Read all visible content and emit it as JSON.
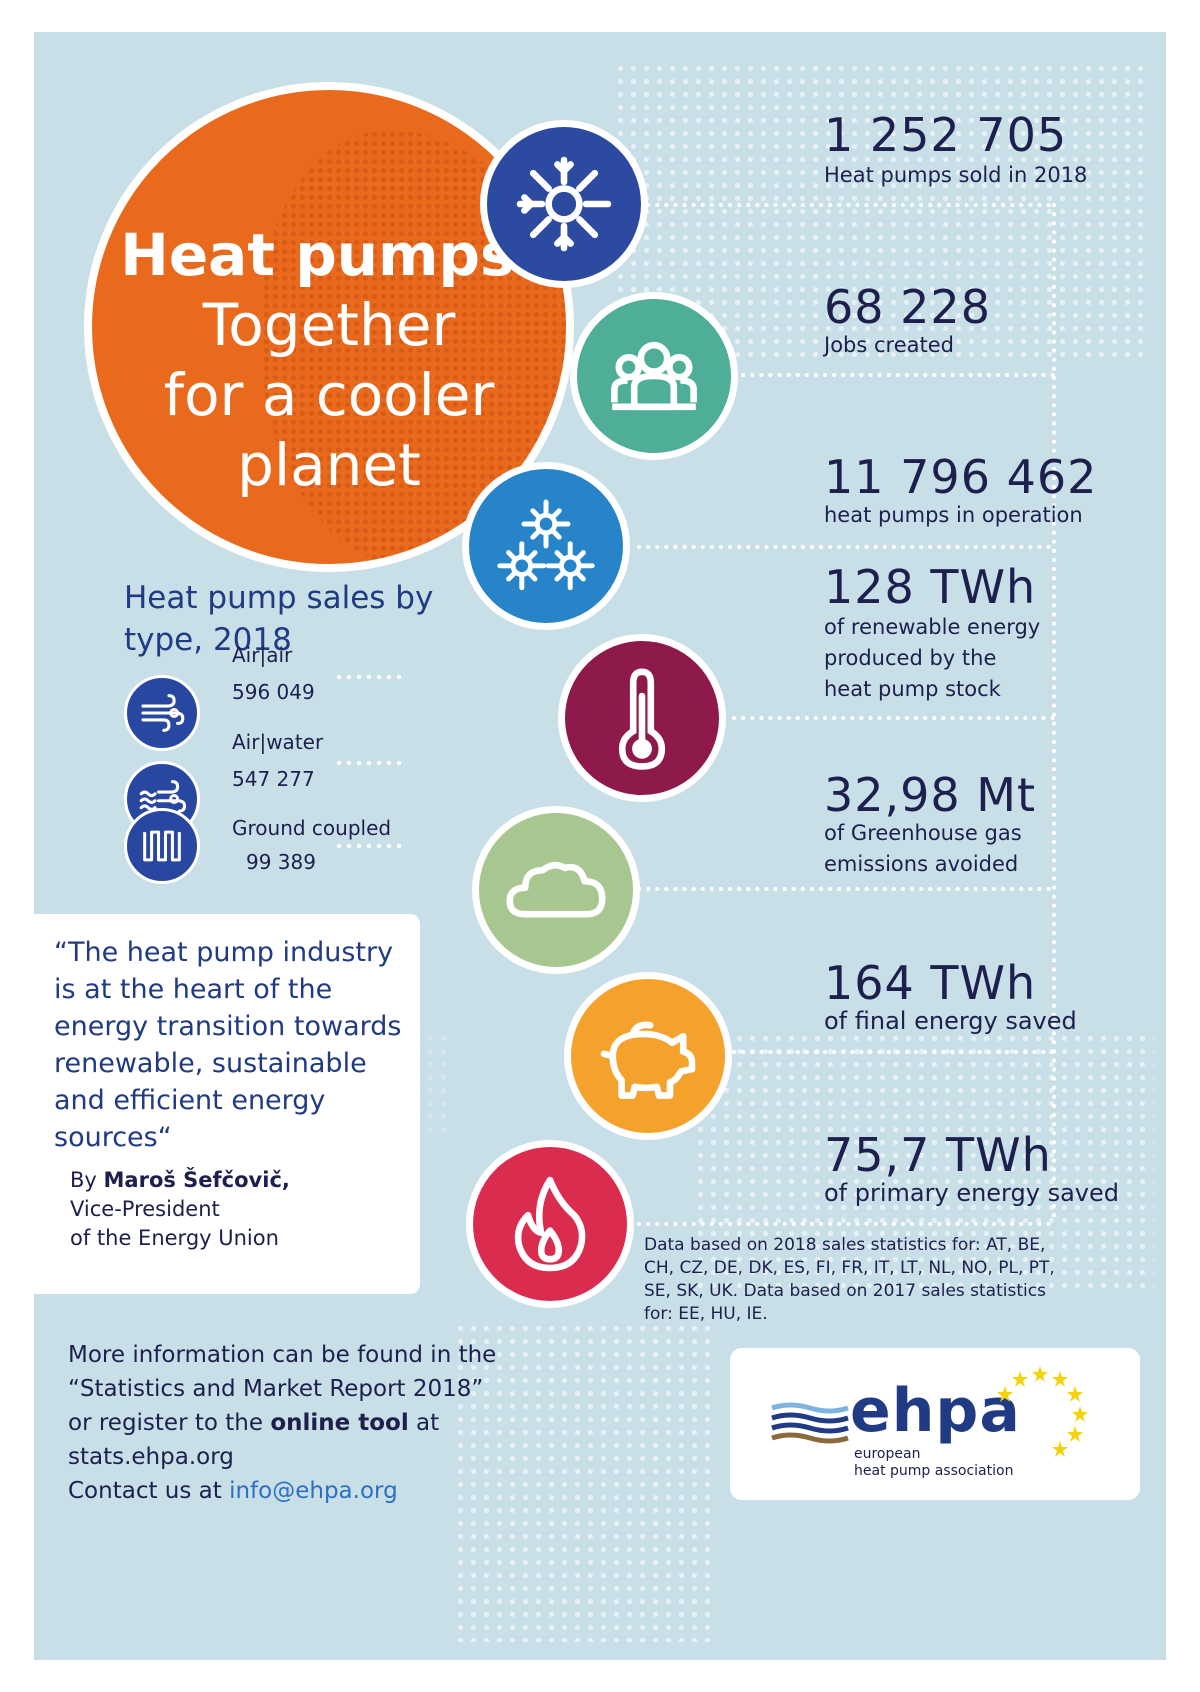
{
  "title": {
    "line1": "Heat pumps:",
    "line2": "Together",
    "line3": "for a cooler",
    "line4": "planet"
  },
  "stats": [
    {
      "value": "1 252 705",
      "desc": "Heat pumps sold in 2018",
      "icon": "sun-snowflake-icon",
      "color": "#2d4aa1"
    },
    {
      "value": "68 228",
      "desc": "Jobs created",
      "icon": "people-group-icon",
      "color": "#4fae98"
    },
    {
      "value": "11 796 462",
      "desc": "heat pumps in operation",
      "icon": "multiple-sun-snowflake-icon",
      "color": "#2784c9"
    },
    {
      "value": "128 TWh",
      "desc": "of renewable energy produced by the heat pump stock",
      "icon": "thermometer-icon",
      "color": "#8e1a4c"
    },
    {
      "value": "32,98 Mt",
      "desc": "of Greenhouse gas emissions avoided",
      "icon": "cloud-icon",
      "color": "#a8c690"
    },
    {
      "value": "164 TWh",
      "desc": "of final energy saved",
      "icon": "piggy-bank-icon",
      "color": "#f5a22c"
    },
    {
      "value": "75,7 TWh",
      "desc": "of primary energy saved",
      "icon": "flame-icon",
      "color": "#da2c4f"
    }
  ],
  "sales": {
    "title": "Heat pump sales by type, 2018",
    "items": [
      {
        "label": "Air|air",
        "value": "596 049",
        "icon": "wind-icon"
      },
      {
        "label": "Air|water",
        "value": "547 277",
        "icon": "wind-water-icon"
      },
      {
        "label": "Ground coupled",
        "value": "99 389",
        "icon": "ground-coil-icon"
      }
    ]
  },
  "quote": {
    "text": "“The heat pump industry is at the heart of the energy transition towards renewable, sustainable and efficient energy sources“",
    "by": "By ",
    "author": "Maroš Šefčovič,",
    "role1": "Vice-President",
    "role2": "of the Energy Union"
  },
  "info": {
    "line1": "More information can be found in the",
    "line2": "“Statistics and Market Report 2018”",
    "line3a": "or register to the ",
    "line3b": "online tool",
    "line3c": " at",
    "line4": "stats.ehpa.org",
    "line5a": "Contact us at ",
    "line5b": "info@ehpa.org"
  },
  "footnote": "Data based on 2018 sales statistics for: AT, BE, CH, CZ, DE, DK, ES, FI, FR, IT, LT, NL, NO, PL, PT, SE, SK, UK. Data based on 2017 sales statistics for: EE, HU, IE.",
  "logo": {
    "word": "ehpa",
    "sub1": "european",
    "sub2": "heat pump association"
  },
  "colors": {
    "background": "#c9dfe8",
    "title_circle": "#ea6a1d",
    "navy": "#203a83",
    "link": "#2d6fc2"
  }
}
